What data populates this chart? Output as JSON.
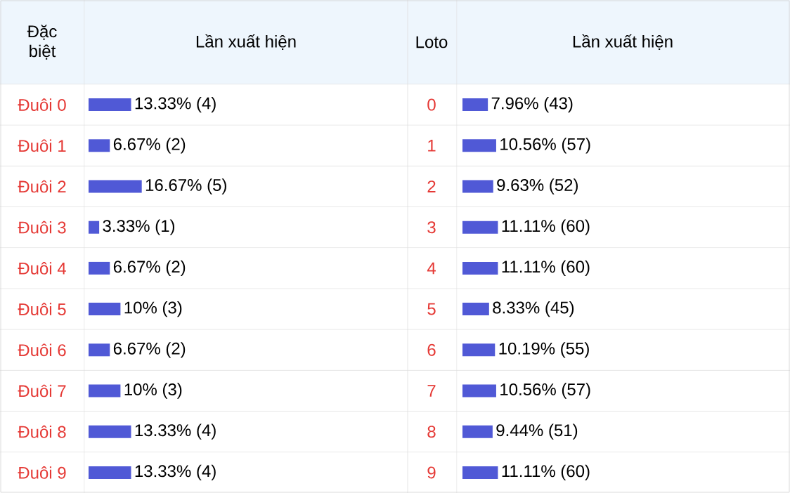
{
  "chart_data": [
    {
      "type": "bar",
      "orientation": "horizontal",
      "ylabel": "Đặc biệt",
      "xlabel": "Lần xuất hiện",
      "color": "#5059d6",
      "tick_labels": false,
      "categories": [
        "Đuôi 0",
        "Đuôi 1",
        "Đuôi 2",
        "Đuôi 3",
        "Đuôi 4",
        "Đuôi 5",
        "Đuôi 6",
        "Đuôi 7",
        "Đuôi 8",
        "Đuôi 9"
      ],
      "values": [
        13.33,
        6.67,
        16.67,
        3.33,
        6.67,
        10,
        6.67,
        10,
        13.33,
        13.33
      ],
      "value_labels": [
        "13.33% (4)",
        "6.67% (2)",
        "16.67% (5)",
        "3.33% (1)",
        "6.67% (2)",
        "10% (3)",
        "6.67% (2)",
        "10% (3)",
        "13.33% (4)",
        "13.33% (4)"
      ]
    },
    {
      "type": "bar",
      "orientation": "horizontal",
      "ylabel": "Loto",
      "xlabel": "Lần xuất hiện",
      "color": "#5059d6",
      "tick_labels": false,
      "categories": [
        "0",
        "1",
        "2",
        "3",
        "4",
        "5",
        "6",
        "7",
        "8",
        "9"
      ],
      "values": [
        7.96,
        10.56,
        9.63,
        11.11,
        11.11,
        8.33,
        10.19,
        10.56,
        9.44,
        11.11
      ],
      "value_labels": [
        "7.96% (43)",
        "10.56% (57)",
        "9.63% (52)",
        "11.11% (60)",
        "11.11% (60)",
        "8.33% (45)",
        "10.19% (55)",
        "10.56% (57)",
        "9.44% (51)",
        "11.11% (60)"
      ]
    }
  ]
}
